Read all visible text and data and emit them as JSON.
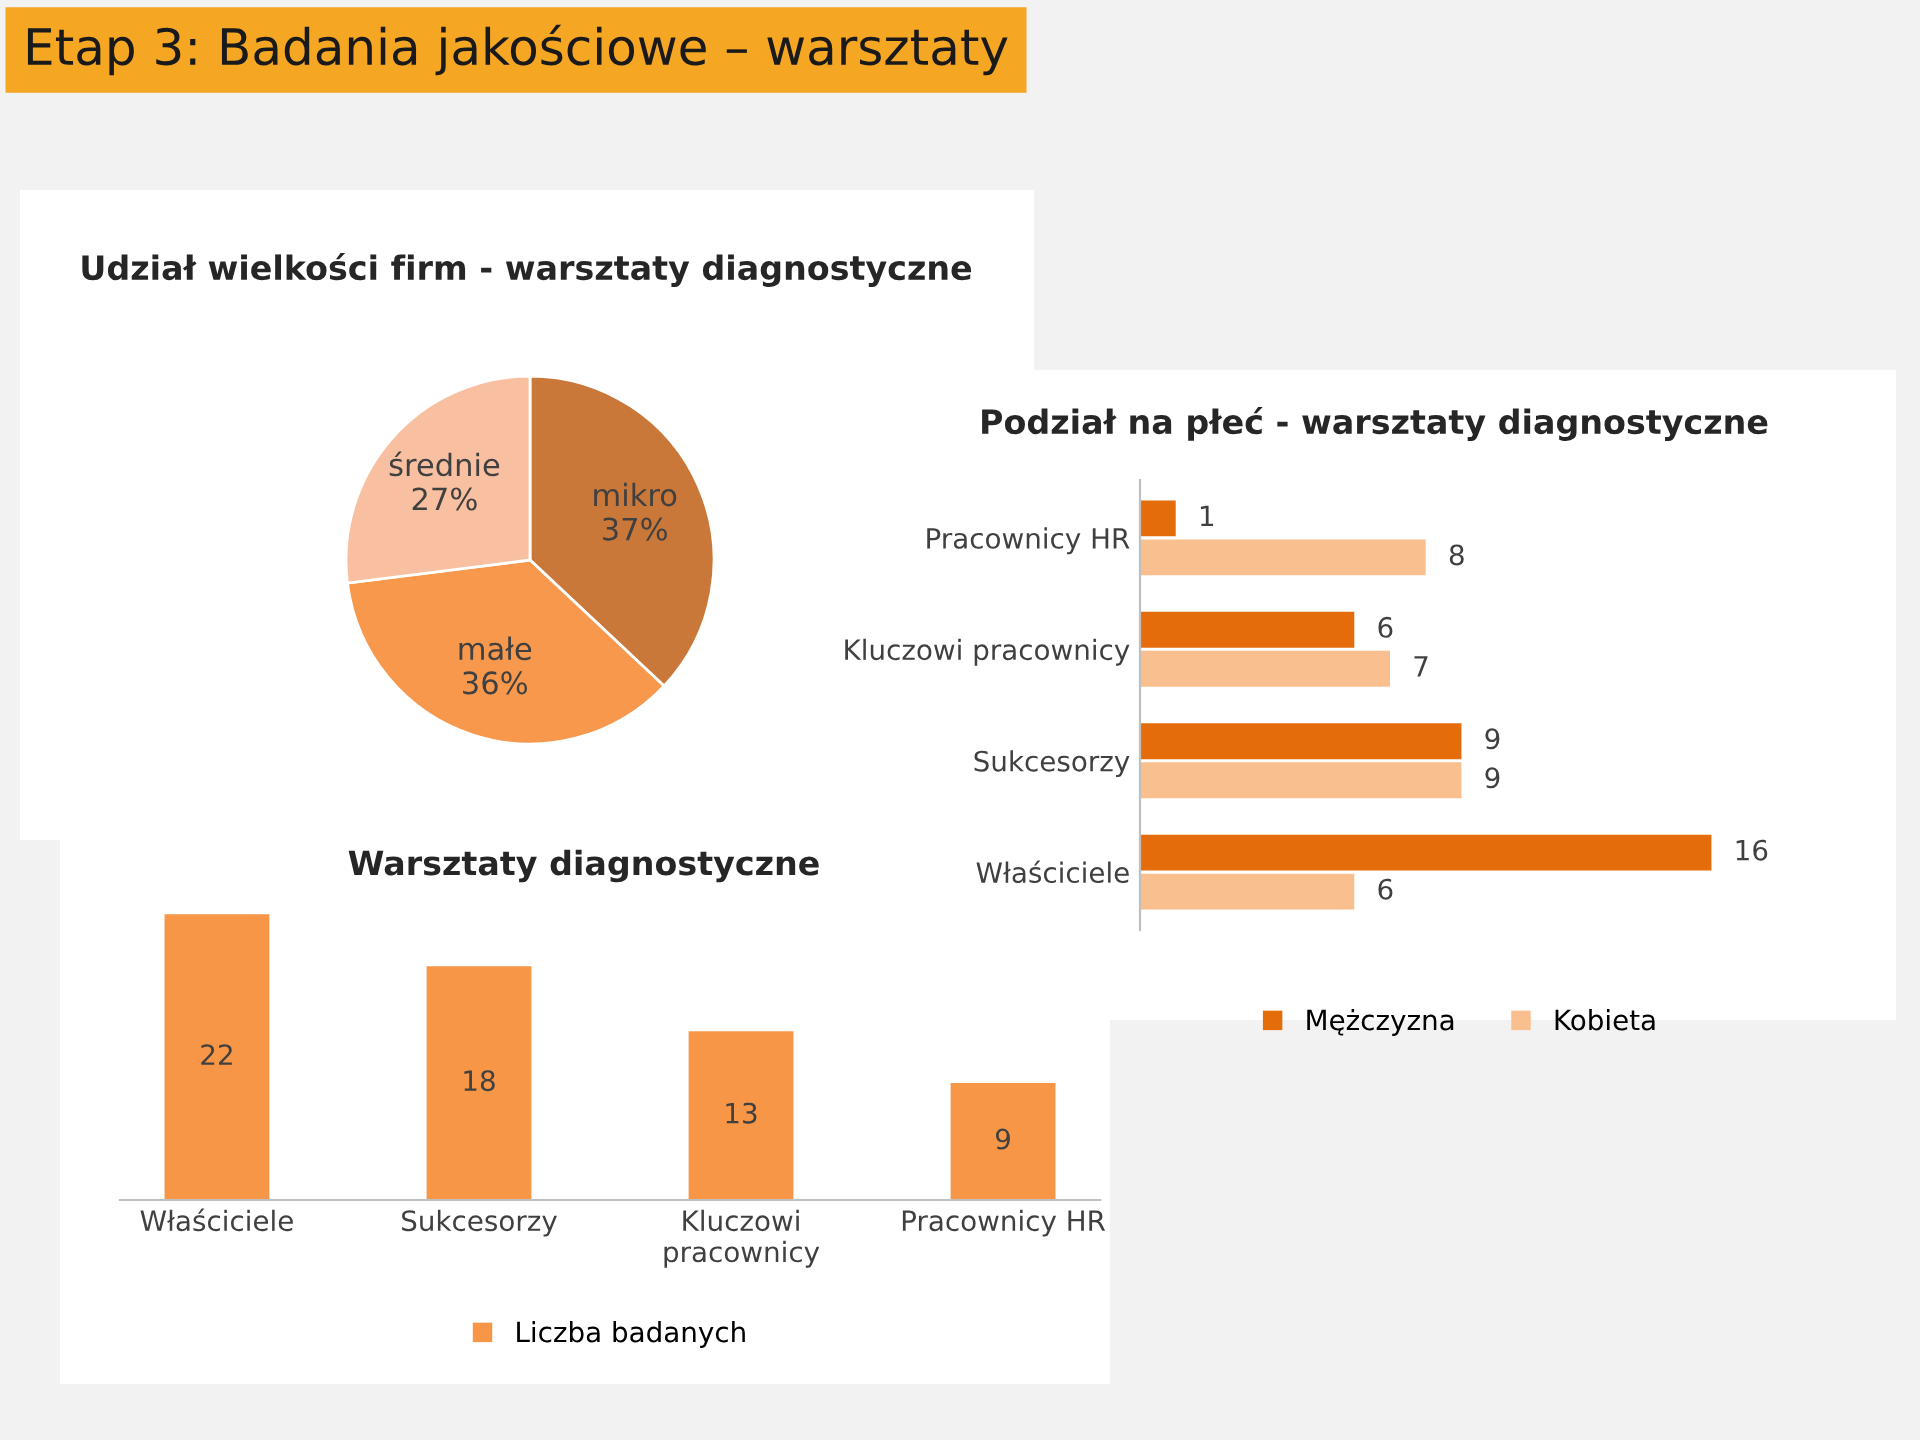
{
  "chart_data": [
    {
      "type": "pie",
      "title": "Udział wielkości firm - warsztaty diagnostyczne",
      "annotations": [
        "Etap 3: Badania jakościowe – warsztaty"
      ],
      "categories": [
        "mikro",
        "małe",
        "średnie"
      ],
      "values": [
        37,
        36,
        27
      ],
      "colors": [
        "#c9783a",
        "#f7984c",
        "#f8c0a0"
      ],
      "value_labels": [
        "37%",
        "36%",
        "27%"
      ]
    },
    {
      "type": "bar",
      "orientation": "horizontal",
      "title": "Podział na płeć - warsztaty diagnostyczne",
      "categories": [
        "Pracownicy HR",
        "Kluczowi pracownicy",
        "Sukcesorzy",
        "Właściciele"
      ],
      "series": [
        {
          "name": "Mężczyzna",
          "color": "#e46c0a",
          "values": [
            1,
            6,
            9,
            16
          ]
        },
        {
          "name": "Kobieta",
          "color": "#f9bf8f",
          "values": [
            8,
            7,
            9,
            6
          ]
        }
      ],
      "tick_labels": "y",
      "data_labels": true,
      "legend": "bottom",
      "grid": false
    },
    {
      "type": "bar",
      "title": "Warsztaty diagnostyczne",
      "categories": [
        "Właściciele",
        "Sukcesorzy",
        "Kluczowi\npracownicy",
        "Pracownicy HR"
      ],
      "series": [
        {
          "name": "Liczba badanych",
          "color": "#f79646",
          "values": [
            22,
            18,
            13,
            9
          ]
        }
      ],
      "tick_labels": "x",
      "data_labels": true,
      "legend": "bottom",
      "grid": false
    }
  ]
}
